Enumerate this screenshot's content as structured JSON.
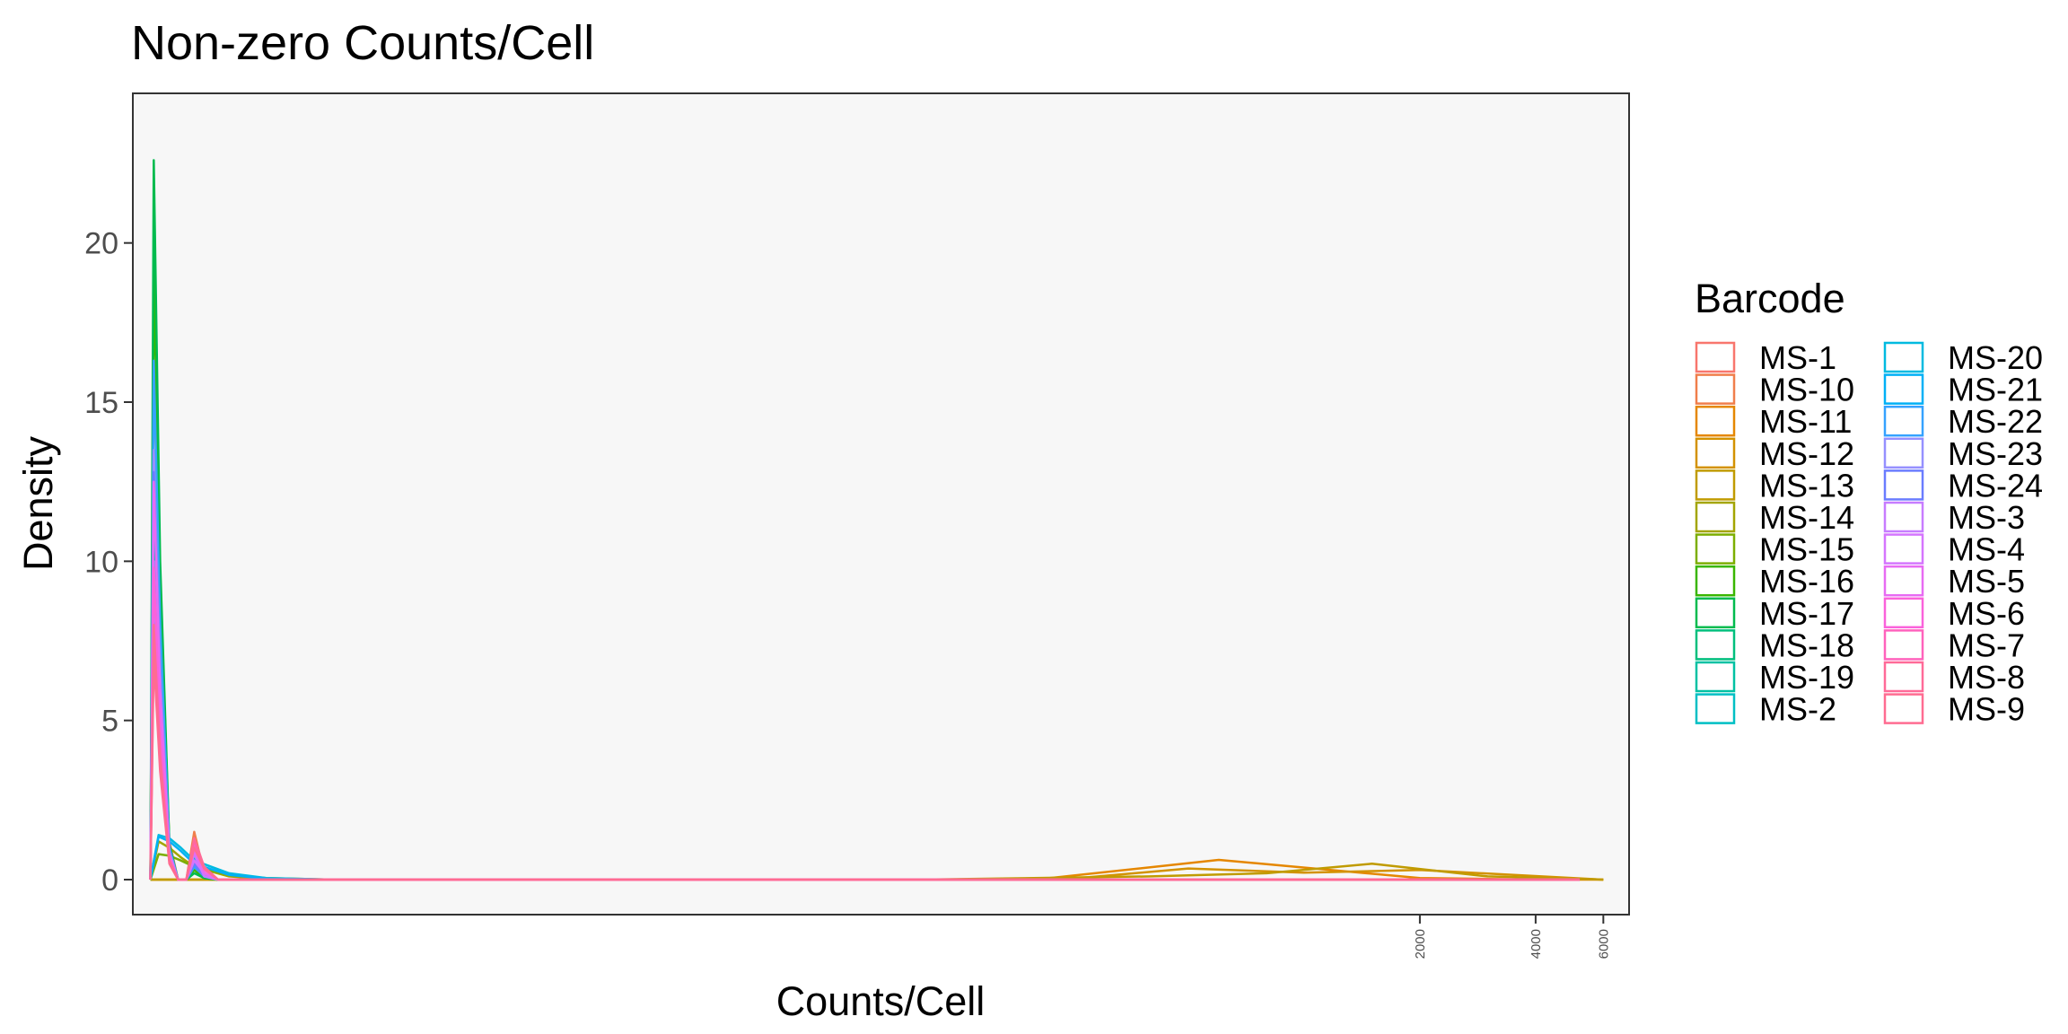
{
  "chart_data": {
    "type": "area",
    "title": "Non-zero Counts/Cell",
    "xlabel": "Counts/Cell",
    "ylabel": "Density",
    "x_scale": "log",
    "xlim": [
      0.9,
      7000
    ],
    "ylim": [
      -1.1,
      24.7
    ],
    "x_ticks": [
      2000,
      4000,
      6000
    ],
    "y_ticks": [
      0,
      5,
      10,
      15,
      20
    ],
    "grid": false,
    "panel_background": "#F7F7F7",
    "legend": {
      "title": "Barcode",
      "position": "right",
      "columns": 2
    },
    "series": [
      {
        "name": "MS-1",
        "color": "#F8766D",
        "x": [
          1,
          1.02,
          1.06,
          1.12,
          1.18,
          1.24,
          1.3,
          1.38,
          1.5,
          1.6,
          1.7
        ],
        "y": [
          0,
          16.1,
          8.2,
          1.2,
          0,
          0,
          0.4,
          0.1,
          0,
          0,
          0
        ]
      },
      {
        "name": "MS-10",
        "color": "#F07E4B",
        "x": [
          1,
          1.02,
          1.06,
          1.12,
          1.18,
          1.24,
          1.3,
          1.38,
          1.5,
          1.6,
          1.7
        ],
        "y": [
          0,
          8.3,
          4.6,
          0.9,
          0,
          0,
          1.5,
          0.2,
          0,
          0,
          0
        ]
      },
      {
        "name": "MS-11",
        "color": "#E58700",
        "x": [
          1,
          1.5,
          4,
          20,
          60,
          200,
          600,
          2000,
          4000,
          6000
        ],
        "y": [
          0,
          0,
          0,
          0,
          0,
          0,
          0.62,
          0.05,
          0,
          0
        ]
      },
      {
        "name": "MS-12",
        "color": "#D39200",
        "x": [
          1,
          1.5,
          20,
          100,
          250,
          500,
          1000,
          2000,
          6000
        ],
        "y": [
          0,
          0,
          0,
          0,
          0.03,
          0.35,
          0.22,
          0.3,
          0
        ]
      },
      {
        "name": "MS-13",
        "color": "#C09B00",
        "x": [
          1,
          1.5,
          10,
          100,
          400,
          800,
          1500,
          3000,
          6000
        ],
        "y": [
          0,
          0,
          0,
          0,
          0.1,
          0.2,
          0.5,
          0.1,
          0
        ]
      },
      {
        "name": "MS-14",
        "color": "#A3A500",
        "x": [
          1,
          1.05,
          1.12,
          1.2,
          1.3,
          1.6,
          2,
          3,
          5
        ],
        "y": [
          0,
          1.2,
          1.0,
          0.7,
          0.4,
          0.1,
          0.02,
          0,
          0
        ]
      },
      {
        "name": "MS-15",
        "color": "#7CAE00",
        "x": [
          1,
          1.05,
          1.12,
          1.2,
          1.3,
          1.6,
          2,
          3,
          5
        ],
        "y": [
          0,
          0.8,
          0.75,
          0.6,
          0.4,
          0.15,
          0.05,
          0,
          0
        ]
      },
      {
        "name": "MS-16",
        "color": "#39B600",
        "x": [
          1,
          1.02,
          1.06,
          1.12,
          1.18,
          1.24,
          1.3,
          1.38,
          1.5,
          1.6,
          1.7
        ],
        "y": [
          0,
          19.2,
          9.5,
          1.0,
          0,
          0,
          0.3,
          0.05,
          0,
          0,
          0
        ]
      },
      {
        "name": "MS-17",
        "color": "#00BB4E",
        "x": [
          1,
          1.02,
          1.06,
          1.12,
          1.18,
          1.24,
          1.3,
          1.38,
          1.5,
          1.6,
          1.7
        ],
        "y": [
          0,
          22.6,
          10.0,
          1.1,
          0,
          0,
          0.2,
          0.05,
          0,
          0,
          0
        ]
      },
      {
        "name": "MS-18",
        "color": "#00BF7D",
        "x": [
          1,
          1.02,
          1.06,
          1.12,
          1.18,
          1.24,
          1.3,
          1.38,
          1.5,
          1.6,
          1.7
        ],
        "y": [
          0,
          10.5,
          5.0,
          0.7,
          0,
          0,
          0.6,
          0.1,
          0,
          0,
          0
        ]
      },
      {
        "name": "MS-19",
        "color": "#00C1A3",
        "x": [
          1,
          1.02,
          1.06,
          1.12,
          1.18,
          1.24,
          1.3,
          1.38,
          1.5,
          1.6,
          1.7
        ],
        "y": [
          0,
          9.0,
          4.2,
          0.6,
          0,
          0,
          0.5,
          0.1,
          0,
          0,
          0
        ]
      },
      {
        "name": "MS-2",
        "color": "#00BFC4",
        "x": [
          1,
          1.02,
          1.06,
          1.12,
          1.18,
          1.24,
          1.3,
          1.38,
          1.5,
          1.6,
          1.7
        ],
        "y": [
          0,
          12.0,
          6.0,
          0.8,
          0,
          0,
          0.7,
          0.1,
          0,
          0,
          0
        ]
      },
      {
        "name": "MS-20",
        "color": "#00BAE0",
        "x": [
          1,
          1.05,
          1.12,
          1.2,
          1.3,
          1.6,
          2,
          3,
          5
        ],
        "y": [
          0,
          1.4,
          1.3,
          1.0,
          0.6,
          0.2,
          0.05,
          0,
          0
        ]
      },
      {
        "name": "MS-21",
        "color": "#00B0F6",
        "x": [
          1,
          1.05,
          1.12,
          1.2,
          1.3,
          1.6,
          2,
          3,
          5
        ],
        "y": [
          0,
          1.35,
          1.2,
          0.9,
          0.5,
          0.15,
          0.03,
          0,
          0
        ]
      },
      {
        "name": "MS-22",
        "color": "#35A2FF",
        "x": [
          1,
          1.02,
          1.06,
          1.12,
          1.18,
          1.24,
          1.3,
          1.38,
          1.5,
          1.6,
          1.7
        ],
        "y": [
          0,
          16.3,
          8.0,
          1.0,
          0,
          0,
          0.4,
          0.1,
          0,
          0,
          0
        ]
      },
      {
        "name": "MS-23",
        "color": "#9590FF",
        "x": [
          1,
          1.02,
          1.06,
          1.12,
          1.18,
          1.24,
          1.3,
          1.38,
          1.5,
          1.6,
          1.7
        ],
        "y": [
          0,
          13.5,
          6.5,
          0.9,
          0,
          0,
          0.6,
          0.15,
          0,
          0,
          0
        ]
      },
      {
        "name": "MS-24",
        "color": "#6A7CFF",
        "x": [
          1,
          1.02,
          1.06,
          1.12,
          1.18,
          1.24,
          1.3,
          1.38,
          1.5,
          1.6,
          1.7
        ],
        "y": [
          0,
          12.8,
          6.2,
          0.8,
          0,
          0,
          0.5,
          0.1,
          0,
          0,
          0
        ]
      },
      {
        "name": "MS-3",
        "color": "#C77CFF",
        "x": [
          1,
          1.02,
          1.06,
          1.12,
          1.18,
          1.24,
          1.3,
          1.38,
          1.5,
          1.6,
          1.7
        ],
        "y": [
          0,
          9.5,
          4.5,
          0.7,
          0,
          0,
          0.8,
          0.1,
          0,
          0,
          0
        ]
      },
      {
        "name": "MS-4",
        "color": "#D575FE",
        "x": [
          1,
          1.02,
          1.06,
          1.12,
          1.18,
          1.24,
          1.3,
          1.38,
          1.5,
          1.6,
          1.7
        ],
        "y": [
          0,
          10.0,
          4.8,
          0.7,
          0,
          0,
          0.6,
          0.2,
          0,
          0,
          0
        ]
      },
      {
        "name": "MS-5",
        "color": "#E76BF3",
        "x": [
          1,
          1.02,
          1.06,
          1.12,
          1.18,
          1.24,
          1.3,
          1.38,
          1.5,
          1.6,
          1.7
        ],
        "y": [
          0,
          12.5,
          6.0,
          0.8,
          0,
          0,
          0.9,
          0.2,
          0,
          0,
          0
        ]
      },
      {
        "name": "MS-6",
        "color": "#FA62DB",
        "x": [
          1,
          1.02,
          1.06,
          1.12,
          1.18,
          1.24,
          1.3,
          1.38,
          1.5,
          1.6,
          1.7
        ],
        "y": [
          0,
          9.8,
          4.7,
          0.7,
          0,
          0,
          1.1,
          0.3,
          0,
          0,
          0
        ]
      },
      {
        "name": "MS-7",
        "color": "#FF62BC",
        "x": [
          1,
          1.02,
          1.06,
          1.12,
          1.18,
          1.24,
          1.3,
          1.38,
          1.5,
          1.6,
          1.7
        ],
        "y": [
          0,
          7.3,
          3.6,
          0.6,
          0,
          0,
          1.2,
          0.35,
          0,
          0,
          0
        ]
      },
      {
        "name": "MS-8",
        "color": "#FF6A98",
        "x": [
          1,
          1.02,
          1.06,
          1.12,
          1.18,
          1.24,
          1.3,
          1.38,
          1.5,
          1.6,
          1.7
        ],
        "y": [
          0,
          8.0,
          3.9,
          0.6,
          0,
          0,
          1.3,
          0.4,
          0,
          0,
          0
        ]
      },
      {
        "name": "MS-9",
        "color": "#FF6C91",
        "x": [
          1,
          1.02,
          1.06,
          1.12,
          1.18,
          1.24,
          1.3,
          1.38,
          1.5,
          1.6,
          1.7
        ],
        "y": [
          0,
          7.0,
          3.4,
          0.5,
          0,
          0,
          1.0,
          0.35,
          0,
          0,
          0
        ]
      }
    ]
  }
}
